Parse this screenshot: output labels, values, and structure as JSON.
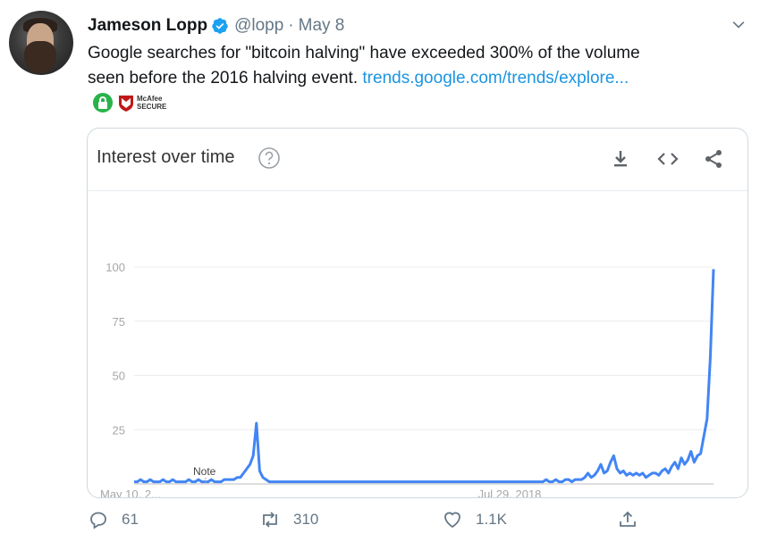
{
  "tweet": {
    "author_name": "Jameson Lopp",
    "handle": "@lopp",
    "separator": "·",
    "date": "May 8",
    "text_line1": "Google searches for \"bitcoin halving\" have exceeded 300% of the volume",
    "text_line2": "seen before the 2016 halving event.",
    "link_text": "trends.google.com/trends/explore..."
  },
  "badges": {
    "mcafee_line1": "McAfee",
    "mcafee_line2": "SECURE"
  },
  "card": {
    "title": "Interest over time"
  },
  "chart_data": {
    "type": "line",
    "title": "Interest over time",
    "ylim": [
      0,
      100
    ],
    "yticks": [
      100,
      75,
      50,
      25
    ],
    "x_tick_labels": [
      "May 10, 2...",
      "Jul 29, 2018"
    ],
    "annotation": "Note",
    "line_color": "#4285f4",
    "grid": true,
    "series": [
      {
        "values": [
          1,
          1,
          2,
          1,
          1,
          2,
          1,
          1,
          1,
          2,
          1,
          1,
          2,
          1,
          1,
          1,
          1,
          2,
          1,
          1,
          2,
          1,
          1,
          1,
          2,
          1,
          1,
          1,
          2,
          2,
          2,
          2,
          3,
          3,
          5,
          7,
          9,
          13,
          28,
          6,
          3,
          2,
          1,
          1,
          1,
          1,
          1,
          1,
          1,
          1,
          1,
          1,
          1,
          1,
          1,
          1,
          1,
          1,
          1,
          1,
          1,
          1,
          1,
          1,
          1,
          1,
          1,
          1,
          1,
          1,
          1,
          1,
          1,
          1,
          1,
          1,
          1,
          1,
          1,
          1,
          1,
          1,
          1,
          1,
          1,
          1,
          1,
          1,
          1,
          1,
          1,
          1,
          1,
          1,
          1,
          1,
          1,
          1,
          1,
          1,
          1,
          1,
          1,
          1,
          1,
          1,
          1,
          1,
          1,
          1,
          1,
          1,
          1,
          1,
          1,
          1,
          1,
          1,
          1,
          1,
          1,
          1,
          1,
          1,
          1,
          1,
          1,
          1,
          2,
          1,
          1,
          2,
          1,
          1,
          2,
          2,
          1,
          2,
          2,
          2,
          3,
          5,
          3,
          4,
          6,
          9,
          5,
          6,
          10,
          13,
          7,
          5,
          6,
          4,
          5,
          4,
          5,
          4,
          5,
          3,
          4,
          5,
          5,
          4,
          6,
          7,
          5,
          8,
          10,
          7,
          12,
          9,
          11,
          15,
          10,
          13,
          14,
          22,
          30,
          58,
          99
        ]
      }
    ]
  },
  "actions": {
    "replies": "61",
    "retweets": "310",
    "likes": "1.1K"
  }
}
